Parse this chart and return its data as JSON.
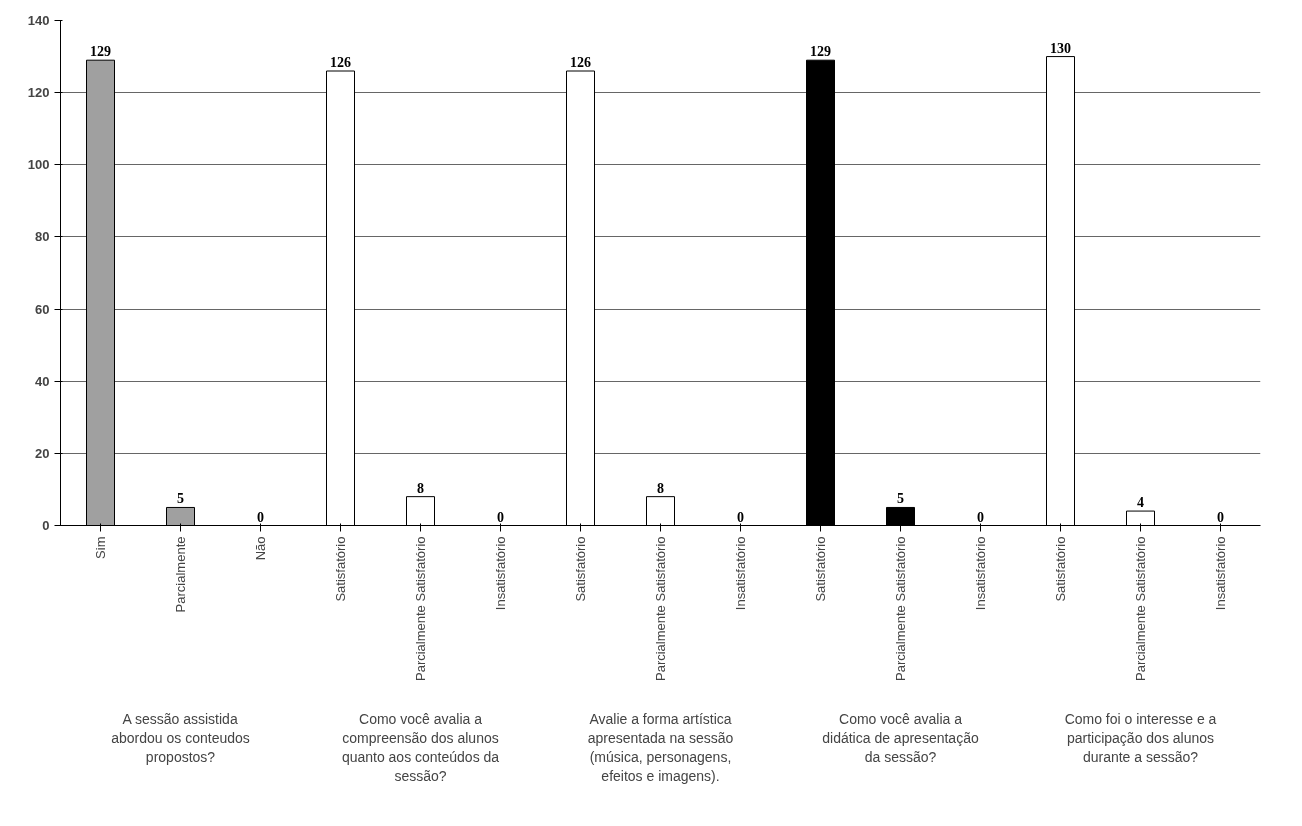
{
  "chart_data": {
    "type": "bar",
    "categories": [
      "Sim",
      "Parcialmente",
      "Não",
      "Satisfatório",
      "Parcialmente Satisfatório",
      "Insatisfatório",
      "Satisfatório",
      "Parcialmente Satisfatório",
      "Insatisfatório",
      "Satisfatório",
      "Parcialmente Satisfatório",
      "Insatisfatório",
      "Satisfatório",
      "Parcialmente Satisfatório",
      "Insatisfatório"
    ],
    "values": [
      129,
      5,
      0,
      126,
      8,
      0,
      126,
      8,
      0,
      129,
      5,
      0,
      130,
      4,
      0
    ],
    "colors": [
      "#a0a0a0",
      "#a0a0a0",
      "#a0a0a0",
      "#ffffff",
      "#ffffff",
      "#ffffff",
      "#ffffff",
      "#ffffff",
      "#ffffff",
      "#000000",
      "#000000",
      "#000000",
      "#ffffff",
      "#ffffff",
      "#ffffff"
    ],
    "annotations": [
      "A sessão assistida abordou os conteudos propostos?",
      "Como você avalia a compreensão dos alunos quanto aos conteúdos da sessão?",
      "Avalie a forma artística apresentada na sessão (música, personagens, efeitos e imagens).",
      "Como você avalia a didática de apresentação da sessão?",
      "Como foi o interesse e a participação dos alunos durante a sessão?"
    ],
    "ylim": [
      0,
      140
    ],
    "yticks": [
      0,
      20,
      40,
      60,
      80,
      100,
      120,
      140
    ],
    "grid": "y",
    "data_labels": true
  }
}
